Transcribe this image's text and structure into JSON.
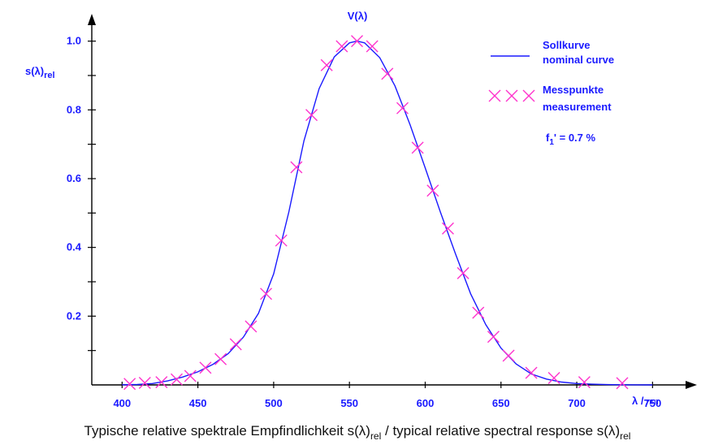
{
  "chart_data": {
    "type": "line",
    "title": "V(λ)",
    "ylabel_main": "s(λ)",
    "ylabel_sub": "rel",
    "xlabel_main": "λ /",
    "xlabel_unit": "nm",
    "xlim": [
      380,
      760
    ],
    "ylim": [
      0,
      1.07
    ],
    "x_ticks": [
      400,
      450,
      500,
      550,
      600,
      650,
      700,
      750
    ],
    "y_ticks": [
      0.2,
      0.4,
      0.6,
      0.8,
      1.0
    ],
    "y_ticks_labels": [
      "0.2",
      "0.4",
      "0.6",
      "0.8",
      "1.0"
    ],
    "y_minor_ticks": [
      0.1,
      0.3,
      0.5,
      0.7,
      0.9
    ],
    "series": [
      {
        "name": "Sollkurve",
        "name_en": "nominal curve",
        "kind": "line",
        "color": "#1a1aff",
        "x": [
          400,
          410,
          420,
          430,
          440,
          450,
          460,
          470,
          480,
          490,
          500,
          510,
          520,
          530,
          540,
          550,
          555,
          560,
          570,
          580,
          590,
          600,
          610,
          620,
          630,
          640,
          650,
          660,
          670,
          680,
          690,
          700,
          710,
          720,
          730,
          740,
          750
        ],
        "y": [
          0.0004,
          0.0012,
          0.004,
          0.0116,
          0.023,
          0.038,
          0.06,
          0.091,
          0.139,
          0.208,
          0.323,
          0.503,
          0.71,
          0.862,
          0.954,
          0.995,
          1.0,
          0.995,
          0.952,
          0.87,
          0.757,
          0.631,
          0.503,
          0.381,
          0.265,
          0.175,
          0.107,
          0.061,
          0.032,
          0.017,
          0.0082,
          0.0041,
          0.0021,
          0.001,
          0.0005,
          0.0002,
          0.0001
        ]
      },
      {
        "name": "Messpunkte",
        "name_en": "measurement",
        "kind": "marker",
        "color": "#ff33cc",
        "x": [
          405,
          415,
          426,
          436,
          445,
          455,
          465,
          475,
          485,
          495,
          505,
          515,
          525,
          535,
          545,
          555,
          565,
          575,
          585,
          595,
          605,
          615,
          625,
          635,
          645,
          655,
          670,
          685,
          705,
          730
        ],
        "y": [
          0.003,
          0.006,
          0.008,
          0.016,
          0.026,
          0.05,
          0.075,
          0.118,
          0.17,
          0.265,
          0.42,
          0.633,
          0.785,
          0.93,
          0.985,
          1.0,
          0.985,
          0.905,
          0.805,
          0.69,
          0.565,
          0.455,
          0.325,
          0.21,
          0.14,
          0.085,
          0.035,
          0.02,
          0.008,
          0.005
        ]
      }
    ],
    "annotation_main": "f",
    "annotation_sub": "1",
    "annotation_rest": "' = 0.7 %",
    "legend_position": "top-right",
    "grid": false
  },
  "caption": {
    "text_1": "Typische relative spektrale Empfindlichkeit s(λ)",
    "sub_1": "rel",
    "text_2": " / typical relative spectral response s(λ)",
    "sub_2": "rel"
  }
}
